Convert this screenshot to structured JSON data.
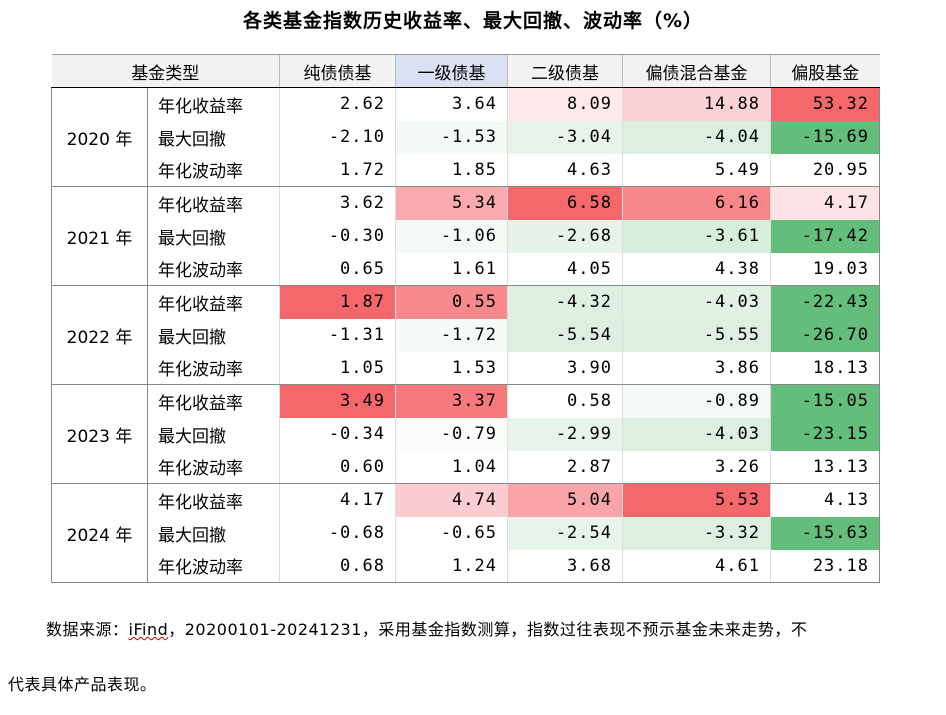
{
  "title": "各类基金指数历史收益率、最大回撤、波动率（%）",
  "table": {
    "headers": [
      "基金类型",
      "纯债债基",
      "一级债基",
      "二级债基",
      "偏债混合基金",
      "偏股基金"
    ],
    "groups": [
      {
        "year": "2020 年",
        "rows": [
          {
            "metric": "年化收益率",
            "values": [
              "2.62",
              "3.64",
              "8.09",
              "14.88",
              "53.32"
            ],
            "colors": [
              "#ffffff",
              "#ffffff",
              "#fde9eb",
              "#fbd3d7",
              "#f4686b"
            ]
          },
          {
            "metric": "最大回撤",
            "values": [
              "-2.10",
              "-1.53",
              "-3.04",
              "-4.04",
              "-15.69"
            ],
            "colors": [
              "#ffffff",
              "#f3f9f4",
              "#e8f4ea",
              "#dcefe0",
              "#63be7b"
            ]
          },
          {
            "metric": "年化波动率",
            "values": [
              "1.72",
              "1.85",
              "4.63",
              "5.49",
              "20.95"
            ],
            "colors": [
              "#ffffff",
              "#ffffff",
              "#ffffff",
              "#ffffff",
              "#ffffff"
            ]
          }
        ]
      },
      {
        "year": "2021 年",
        "rows": [
          {
            "metric": "年化收益率",
            "values": [
              "3.62",
              "5.34",
              "6.58",
              "6.16",
              "4.17"
            ],
            "colors": [
              "#ffffff",
              "#f8aaae",
              "#f4686b",
              "#f6878a",
              "#fde3e6"
            ]
          },
          {
            "metric": "最大回撤",
            "values": [
              "-0.30",
              "-1.06",
              "-2.68",
              "-3.61",
              "-17.42"
            ],
            "colors": [
              "#ffffff",
              "#f5faf6",
              "#e6f3e9",
              "#d8eedc",
              "#63be7b"
            ]
          },
          {
            "metric": "年化波动率",
            "values": [
              "0.65",
              "1.61",
              "4.05",
              "4.38",
              "19.03"
            ],
            "colors": [
              "#ffffff",
              "#ffffff",
              "#ffffff",
              "#ffffff",
              "#ffffff"
            ]
          }
        ]
      },
      {
        "year": "2022 年",
        "rows": [
          {
            "metric": "年化收益率",
            "values": [
              "1.87",
              "0.55",
              "-4.32",
              "-4.03",
              "-22.43"
            ],
            "colors": [
              "#f4686b",
              "#f6898c",
              "#ddf0e1",
              "#e1f1e4",
              "#63be7b"
            ]
          },
          {
            "metric": "最大回撤",
            "values": [
              "-1.31",
              "-1.72",
              "-5.54",
              "-5.55",
              "-26.70"
            ],
            "colors": [
              "#ffffff",
              "#f6fbf7",
              "#deefe2",
              "#deefe2",
              "#63be7b"
            ]
          },
          {
            "metric": "年化波动率",
            "values": [
              "1.05",
              "1.53",
              "3.90",
              "3.86",
              "18.13"
            ],
            "colors": [
              "#ffffff",
              "#ffffff",
              "#ffffff",
              "#ffffff",
              "#ffffff"
            ]
          }
        ]
      },
      {
        "year": "2023 年",
        "rows": [
          {
            "metric": "年化收益率",
            "values": [
              "3.49",
              "3.37",
              "0.58",
              "-0.89",
              "-15.05"
            ],
            "colors": [
              "#f4686b",
              "#f6797c",
              "#ffffff",
              "#f4faf5",
              "#63be7b"
            ]
          },
          {
            "metric": "最大回撤",
            "values": [
              "-0.34",
              "-0.79",
              "-2.99",
              "-4.03",
              "-23.15"
            ],
            "colors": [
              "#ffffff",
              "#fbfdfb",
              "#e8f4ea",
              "#dcefe0",
              "#63be7b"
            ]
          },
          {
            "metric": "年化波动率",
            "values": [
              "0.60",
              "1.04",
              "2.87",
              "3.26",
              "13.13"
            ],
            "colors": [
              "#ffffff",
              "#ffffff",
              "#ffffff",
              "#ffffff",
              "#ffffff"
            ]
          }
        ]
      },
      {
        "year": "2024 年",
        "rows": [
          {
            "metric": "年化收益率",
            "values": [
              "4.17",
              "4.74",
              "5.04",
              "5.53",
              "4.13"
            ],
            "colors": [
              "#ffffff",
              "#fbcdd1",
              "#f8a4a8",
              "#f4686b",
              "#ffffff"
            ]
          },
          {
            "metric": "最大回撤",
            "values": [
              "-0.68",
              "-0.65",
              "-2.54",
              "-3.32",
              "-15.63"
            ],
            "colors": [
              "#ffffff",
              "#ffffff",
              "#e8f4ea",
              "#dcefe0",
              "#63be7b"
            ]
          },
          {
            "metric": "年化波动率",
            "values": [
              "0.68",
              "1.24",
              "3.68",
              "4.61",
              "23.18"
            ],
            "colors": [
              "#ffffff",
              "#ffffff",
              "#ffffff",
              "#ffffff",
              "#ffffff"
            ]
          }
        ]
      }
    ]
  },
  "footer": {
    "prefix": "数据来源：",
    "source": "iFind",
    "rest": "，20200101-20241231，采用基金指数测算，指数过往表现不预示基金未来走势，不",
    "line2": "代表具体产品表现。"
  }
}
